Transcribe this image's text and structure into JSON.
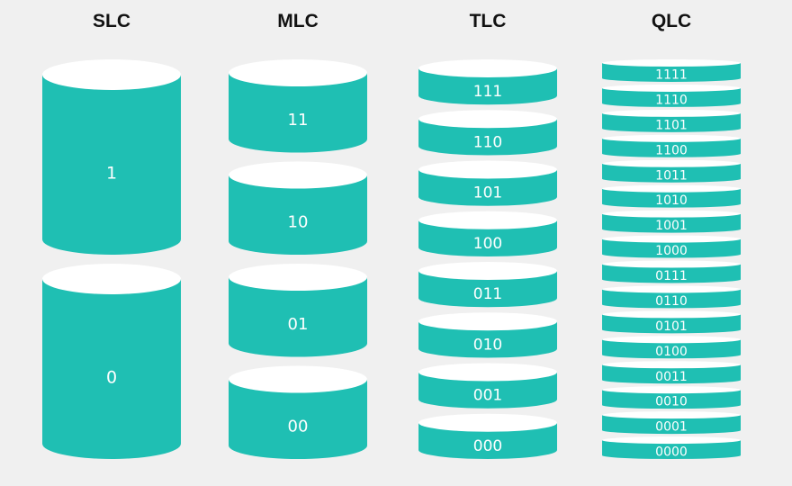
{
  "colors": {
    "background": "#f0f0f0",
    "cylinder_body": "#1fbfb3",
    "cylinder_top": "#ffffff",
    "title_text": "#111111",
    "label_text": "#ffffff"
  },
  "columns": [
    {
      "title": "SLC",
      "cells": [
        "1",
        "0"
      ]
    },
    {
      "title": "MLC",
      "cells": [
        "11",
        "10",
        "01",
        "00"
      ]
    },
    {
      "title": "TLC",
      "cells": [
        "111",
        "110",
        "101",
        "100",
        "011",
        "010",
        "001",
        "000"
      ]
    },
    {
      "title": "QLC",
      "cells": [
        "1111",
        "1110",
        "1101",
        "1100",
        "1011",
        "1010",
        "1001",
        "1000",
        "0111",
        "0110",
        "0101",
        "0100",
        "0011",
        "0010",
        "0001",
        "0000"
      ]
    }
  ]
}
